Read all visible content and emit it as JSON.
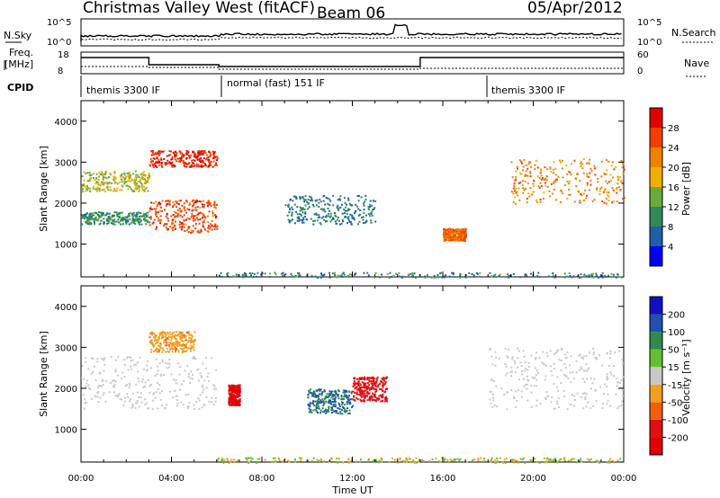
{
  "header": {
    "station": "Christmas Valley West (fitACF)",
    "beam": "Beam 06",
    "date": "05/Apr/2012"
  },
  "noise_panel": {
    "left_label": "N.Sky",
    "left_ticks": [
      "10^5",
      "10^0"
    ],
    "right_ticks": [
      "10^5",
      "10^0"
    ],
    "right_label": "N.Search"
  },
  "freq_panel": {
    "left_label_1": "Freq.",
    "left_label_2": "[MHz]",
    "left_ticks": [
      "18",
      "8"
    ],
    "right_ticks": [
      "60",
      "0"
    ],
    "right_label": "Nave"
  },
  "cpid_panel": {
    "label": "CPID",
    "segments": [
      "themis 3300 IF",
      "normal (fast) 151 IF",
      "themis 3300 IF"
    ]
  },
  "axes": {
    "ylabel": "Slant Range [km]",
    "xlabel": "Time UT",
    "xticks": [
      "00:00",
      "04:00",
      "08:00",
      "12:00",
      "16:00",
      "20:00",
      "00:00"
    ],
    "yticks": [
      "1000",
      "2000",
      "3000",
      "4000"
    ]
  },
  "power_scale": {
    "label": "Power [dB]",
    "ticks": [
      "4",
      "8",
      "12",
      "16",
      "20",
      "24",
      "28"
    ],
    "colors": [
      "#0000ff",
      "#1e5fa8",
      "#2f8a5a",
      "#6aaa3a",
      "#f0b000",
      "#f08000",
      "#f04000",
      "#e00000"
    ]
  },
  "velocity_scale": {
    "label": "Velocity [m s⁻¹]",
    "ticks": [
      "200",
      "100",
      "50",
      "15",
      "-15",
      "-50",
      "-100",
      "-200"
    ],
    "colors": [
      "#1010c0",
      "#2050b0",
      "#308a50",
      "#60c030",
      "#c8c8c8",
      "#f0a020",
      "#f06010",
      "#e01010",
      "#e00000"
    ]
  },
  "chart_data": [
    {
      "type": "heatmap",
      "title": "Power",
      "xlabel": "Time UT",
      "ylabel": "Slant Range [km]",
      "xlim": [
        "00:00",
        "24:00"
      ],
      "ylim": [
        200,
        4500
      ],
      "colorbar": {
        "label": "Power [dB]",
        "range": [
          0,
          30
        ]
      },
      "blobs": [
        {
          "t0": 0.0,
          "t1": 3.0,
          "r0": 2300,
          "r1": 2800,
          "value": 16
        },
        {
          "t0": 0.0,
          "t1": 3.0,
          "r0": 1500,
          "r1": 1800,
          "value": 10
        },
        {
          "t0": 3.0,
          "t1": 6.0,
          "r0": 2900,
          "r1": 3300,
          "value": 28
        },
        {
          "t0": 3.0,
          "t1": 6.0,
          "r0": 1300,
          "r1": 2100,
          "value": 26
        },
        {
          "t0": 9.0,
          "t1": 13.0,
          "r0": 1500,
          "r1": 2200,
          "value": 8
        },
        {
          "t0": 16.0,
          "t1": 17.0,
          "r0": 1100,
          "r1": 1400,
          "value": 24
        },
        {
          "t0": 19.0,
          "t1": 24.0,
          "r0": 2000,
          "r1": 3100,
          "value": 22
        }
      ]
    },
    {
      "type": "heatmap",
      "title": "Velocity",
      "xlabel": "Time UT",
      "ylabel": "Slant Range [km]",
      "xlim": [
        "00:00",
        "24:00"
      ],
      "ylim": [
        200,
        4500
      ],
      "colorbar": {
        "label": "Velocity [m s⁻¹]",
        "range": [
          -200,
          200
        ]
      },
      "blobs": [
        {
          "t0": 0.0,
          "t1": 6.0,
          "r0": 1500,
          "r1": 2800,
          "value": 0
        },
        {
          "t0": 3.0,
          "t1": 5.0,
          "r0": 2900,
          "r1": 3400,
          "value": -40
        },
        {
          "t0": 6.5,
          "t1": 7.0,
          "r0": 1600,
          "r1": 2100,
          "value": -200
        },
        {
          "t0": 10.0,
          "t1": 12.0,
          "r0": 1400,
          "r1": 2000,
          "value": 100
        },
        {
          "t0": 12.0,
          "t1": 13.5,
          "r0": 1700,
          "r1": 2300,
          "value": -150
        },
        {
          "t0": 18.0,
          "t1": 24.0,
          "r0": 1500,
          "r1": 3000,
          "value": 0
        }
      ]
    }
  ]
}
